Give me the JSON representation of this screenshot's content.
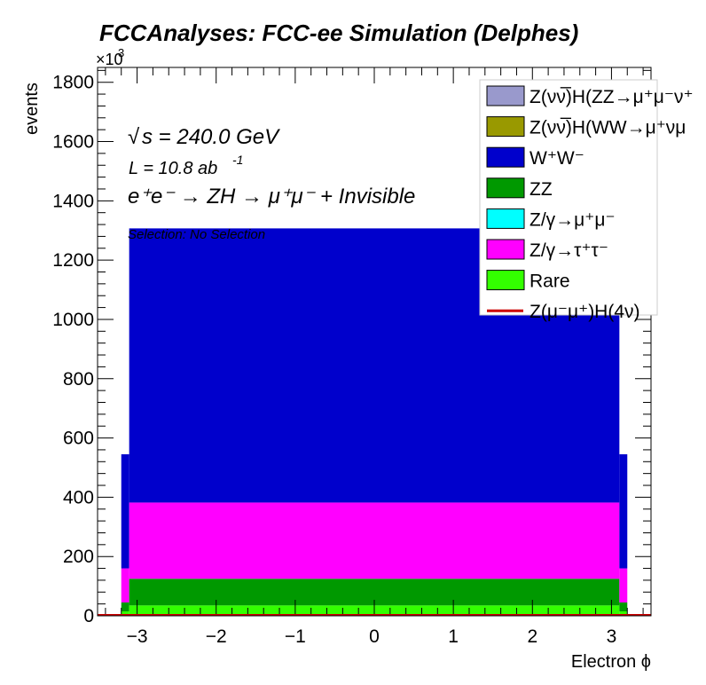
{
  "chart_data": {
    "type": "bar",
    "title": "FCCAnalyses: FCC-ee Simulation (Delphes)",
    "xlabel": "Electron ϕ",
    "ylabel": "events",
    "y_multiplier_label": "×10",
    "y_multiplier_exp": "3",
    "xlim": [
      -3.5,
      3.5
    ],
    "ylim": [
      0,
      1850
    ],
    "x_ticks": [
      -3,
      -2,
      -1,
      0,
      1,
      2,
      3
    ],
    "x_tick_labels": [
      "−3",
      "−2",
      "−1",
      "0",
      "1",
      "2",
      "3"
    ],
    "y_ticks": [
      0,
      200,
      400,
      600,
      800,
      1000,
      1200,
      1400,
      1600,
      1800
    ],
    "y_tick_labels": [
      "0",
      "200",
      "400",
      "600",
      "800",
      "1000",
      "1200",
      "1400",
      "1600",
      "1800"
    ],
    "stacked": true,
    "bins": [
      {
        "x0": -3.2,
        "x1": -3.1
      },
      {
        "x0": -3.1,
        "x1": 3.1
      },
      {
        "x0": 3.1,
        "x1": 3.2
      }
    ],
    "series": [
      {
        "name": "Rare",
        "color": "#33ff00",
        "values": [
          15,
          35,
          15
        ]
      },
      {
        "name": "ZZ",
        "color": "#009900",
        "values": [
          30,
          90,
          30
        ]
      },
      {
        "name": "Z/γ→τ⁺τ⁻",
        "color": "#ff00ff",
        "values": [
          115,
          257,
          115
        ]
      },
      {
        "name": "W⁺W⁻",
        "color": "#0000cc",
        "values": [
          385,
          925,
          385
        ]
      }
    ],
    "legend": [
      {
        "label": "Z(νν̅)H(ZZ→μ⁺μ⁻ν⁺",
        "color": "#9999cc",
        "kind": "box"
      },
      {
        "label": "Z(νν̅)H(WW→μ⁺νμ",
        "color": "#999900",
        "kind": "box"
      },
      {
        "label": "W⁺W⁻",
        "color": "#0000cc",
        "kind": "box"
      },
      {
        "label": "ZZ",
        "color": "#009900",
        "kind": "box"
      },
      {
        "label": "Z/γ→μ⁺μ⁻",
        "color": "#00ffff",
        "kind": "box"
      },
      {
        "label": "Z/γ→τ⁺τ⁻",
        "color": "#ff00ff",
        "kind": "box"
      },
      {
        "label": "Rare",
        "color": "#33ff00",
        "kind": "box"
      },
      {
        "label": "Z(μ⁻μ⁺)H(4ν)",
        "color": "#cc0000",
        "kind": "line"
      }
    ],
    "annotations": {
      "sqrt_symbol": "√",
      "sqrt_s": "s = 240.0 GeV",
      "lumi": "L = 10.8 ab",
      "lumi_exp": "-1",
      "process": "e⁺e⁻ → ZH → μ⁺μ⁻ + Invisible",
      "selection": "Selection: No Selection"
    }
  }
}
